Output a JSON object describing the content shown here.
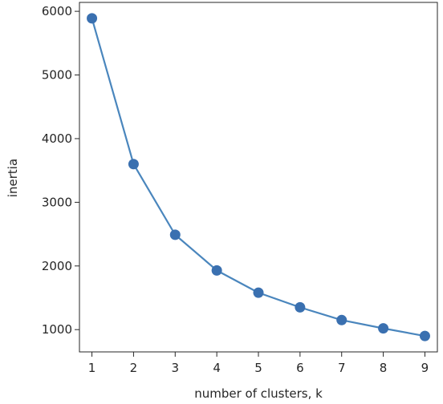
{
  "chart_data": {
    "type": "line",
    "x": [
      1,
      2,
      3,
      4,
      5,
      6,
      7,
      8,
      9
    ],
    "series": [
      {
        "values": [
          5890,
          3600,
          2490,
          1930,
          1580,
          1350,
          1150,
          1020,
          900
        ]
      }
    ],
    "xlabel": "number of clusters, k",
    "ylabel": "inertia",
    "title": "",
    "xlim": [
      0.7,
      9.3
    ],
    "ylim": [
      650,
      6140
    ],
    "xticks": [
      1,
      2,
      3,
      4,
      5,
      6,
      7,
      8,
      9
    ],
    "yticks": [
      1000,
      2000,
      3000,
      4000,
      5000,
      6000
    ],
    "grid": false,
    "marker": "circle",
    "colors": {
      "line": "#4a86bd",
      "marker": "#3a70b0",
      "axes": "#262626"
    }
  }
}
